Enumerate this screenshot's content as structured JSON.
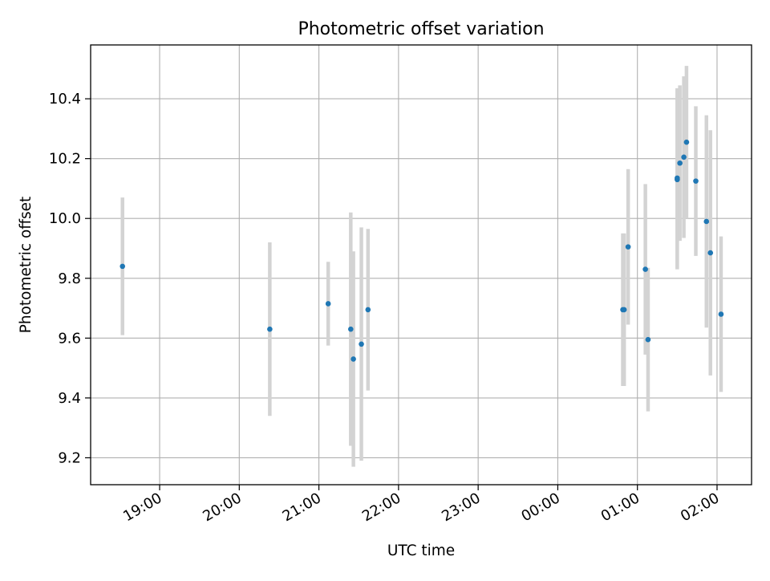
{
  "chart_data": {
    "type": "scatter",
    "title": "Photometric offset variation",
    "xlabel": "UTC time",
    "ylabel": "Photometric offset",
    "x_axis": "time",
    "x_ticks": [
      "19:00",
      "20:00",
      "21:00",
      "22:00",
      "23:00",
      "00:00",
      "01:00",
      "02:00"
    ],
    "x_tick_times": [
      "19:00",
      "20:00",
      "21:00",
      "22:00",
      "23:00",
      "00:00",
      "01:00",
      "02:00"
    ],
    "xlim": [
      "18:08",
      "02:26"
    ],
    "y_ticks": [
      "9.2",
      "9.4",
      "9.6",
      "9.8",
      "10.0",
      "10.2",
      "10.4"
    ],
    "ylim": [
      9.11,
      10.58
    ],
    "grid": true,
    "marker_color": "#1f77b4",
    "errorbar_color": "#d3d3d3",
    "points": [
      {
        "time": "18:32",
        "y": 9.84,
        "err": 0.23
      },
      {
        "time": "20:23",
        "y": 9.63,
        "err": 0.29
      },
      {
        "time": "21:07",
        "y": 9.715,
        "err": 0.14
      },
      {
        "time": "21:24",
        "y": 9.63,
        "err": 0.39
      },
      {
        "time": "21:26",
        "y": 9.53,
        "err": 0.36
      },
      {
        "time": "21:32",
        "y": 9.58,
        "err": 0.39
      },
      {
        "time": "21:37",
        "y": 9.695,
        "err": 0.27
      },
      {
        "time": "00:49",
        "y": 9.695,
        "err": 0.255
      },
      {
        "time": "00:50",
        "y": 9.695,
        "err": 0.255
      },
      {
        "time": "00:53",
        "y": 9.905,
        "err": 0.26
      },
      {
        "time": "01:06",
        "y": 9.83,
        "err": 0.285
      },
      {
        "time": "01:08",
        "y": 9.595,
        "err": 0.24
      },
      {
        "time": "01:30",
        "y": 10.13,
        "err": 0.3
      },
      {
        "time": "01:30",
        "y": 10.135,
        "err": 0.3
      },
      {
        "time": "01:32",
        "y": 10.185,
        "err": 0.26
      },
      {
        "time": "01:35",
        "y": 10.205,
        "err": 0.27
      },
      {
        "time": "01:37",
        "y": 10.255,
        "err": 0.255
      },
      {
        "time": "01:44",
        "y": 10.125,
        "err": 0.25
      },
      {
        "time": "01:52",
        "y": 9.99,
        "err": 0.355
      },
      {
        "time": "01:55",
        "y": 9.885,
        "err": 0.41
      },
      {
        "time": "02:03",
        "y": 9.68,
        "err": 0.26
      }
    ]
  }
}
